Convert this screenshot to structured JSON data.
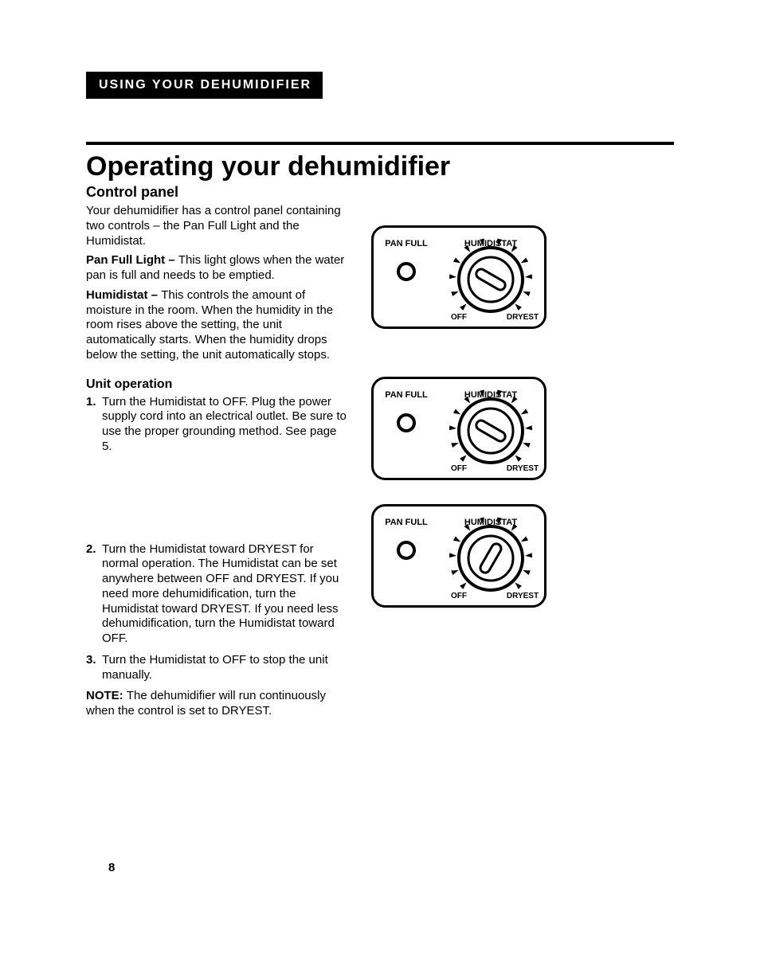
{
  "header": {
    "bar": "USING YOUR DEHUMIDIFIER"
  },
  "title": "Operating your dehumidifier",
  "section_a": {
    "heading": "Control panel",
    "intro": "Your dehumidifier has a control panel containing two controls – the Pan Full Light and the Humidistat.",
    "pan_full_label": "Pan Full Light – ",
    "pan_full_text": "This light glows when the water pan is full and needs to be emptied.",
    "humidistat_label": "Humidistat – ",
    "humidistat_text": "This controls the amount of moisture in the room. When the humidity in the room rises above the setting, the unit automatically starts. When the humidity drops below the setting, the unit automatically stops."
  },
  "section_b": {
    "heading": "Unit operation",
    "step1": "Turn the Humidistat to OFF. Plug the power supply cord into an electrical outlet. Be sure to use the proper grounding method. See page 5.",
    "step2": "Turn the Humidistat toward DRYEST for normal operation. The Humidistat can be set anywhere between OFF and DRYEST. If you need more dehumidification, turn the Humidistat toward DRYEST. If you need less dehumidification, turn the Humidistat toward OFF.",
    "step3": "Turn the Humidistat to OFF to stop the unit manually.",
    "note_label": "NOTE: ",
    "note_text": "The dehumidifier will run continuously when the control is set to DRYEST."
  },
  "panel_labels": {
    "pan_full": "PAN FULL",
    "humidistat": "HUMIDISTAT",
    "off": "OFF",
    "dryest": "DRYEST"
  },
  "dials": [
    {
      "pointer_angle_deg": -150
    },
    {
      "pointer_angle_deg": -150
    },
    {
      "pointer_angle_deg": 120
    }
  ],
  "colors": {
    "ink": "#000000",
    "paper": "#ffffff"
  },
  "page_number": "8"
}
